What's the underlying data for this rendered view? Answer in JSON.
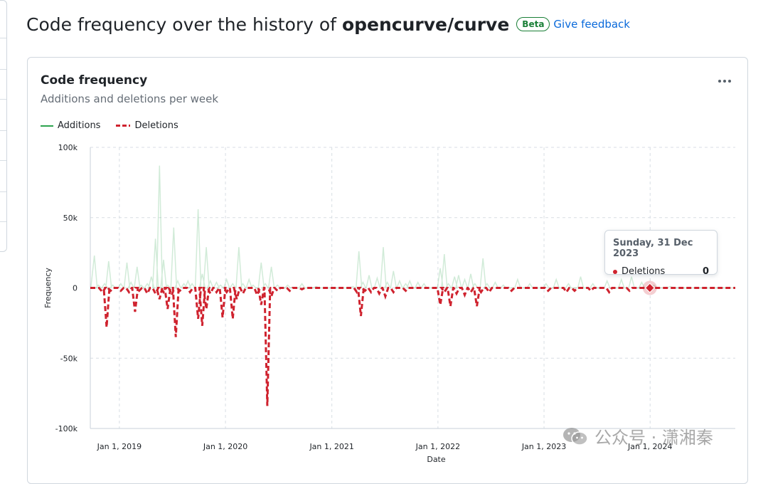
{
  "header": {
    "title_prefix": "Code frequency over the history of ",
    "repo": "opencurve/curve",
    "badge": "Beta",
    "feedback_link": "Give feedback"
  },
  "card": {
    "title": "Code frequency",
    "subtitle": "Additions and deletions per week",
    "menu_icon": "kebab-horizontal-icon"
  },
  "tooltip": {
    "date": "Sunday, 31 Dec 2023",
    "series": "Deletions",
    "value": "0"
  },
  "watermark": {
    "icon": "wechat-icon",
    "text": "公众号 · 潇湘秦"
  },
  "colors": {
    "additions": "#2da44e",
    "deletions": "#cf222e",
    "link": "#0969da",
    "badge": "#1a7f37"
  },
  "chart_data": {
    "type": "line",
    "title": "",
    "xlabel": "Date",
    "ylabel": "Frequency",
    "ylim": [
      -100000,
      100000
    ],
    "xlim": [
      "2018-09-23",
      "2024-10-20"
    ],
    "y_ticks": [
      {
        "value": 100000,
        "label": "100k"
      },
      {
        "value": 50000,
        "label": "50k"
      },
      {
        "value": 0,
        "label": "0"
      },
      {
        "value": -50000,
        "label": "-50k"
      },
      {
        "value": -100000,
        "label": "-100k"
      }
    ],
    "x_ticks": [
      {
        "value": "2019-01-01",
        "label": "Jan 1, 2019"
      },
      {
        "value": "2020-01-01",
        "label": "Jan 1, 2020"
      },
      {
        "value": "2021-01-01",
        "label": "Jan 1, 2021"
      },
      {
        "value": "2022-01-01",
        "label": "Jan 1, 2022"
      },
      {
        "value": "2023-01-01",
        "label": "Jan 1, 2023"
      },
      {
        "value": "2024-01-01",
        "label": "Jan 1, 2024"
      }
    ],
    "grid": true,
    "legend": "top-left",
    "highlight": {
      "x": "2023-12-31",
      "series": "Deletions",
      "y": 0
    },
    "series": [
      {
        "name": "Additions",
        "color": "#2da44e",
        "style": "solid",
        "points": [
          [
            "2018-10-07",
            23000
          ],
          [
            "2018-10-21",
            2000
          ],
          [
            "2018-11-11",
            3000
          ],
          [
            "2018-11-25",
            19000
          ],
          [
            "2018-12-09",
            2000
          ],
          [
            "2019-01-06",
            3000
          ],
          [
            "2019-01-27",
            18000
          ],
          [
            "2019-02-10",
            4000
          ],
          [
            "2019-03-03",
            15000
          ],
          [
            "2019-03-17",
            2000
          ],
          [
            "2019-04-07",
            3000
          ],
          [
            "2019-04-21",
            8000
          ],
          [
            "2019-05-05",
            35000
          ],
          [
            "2019-05-19",
            87000
          ],
          [
            "2019-06-02",
            20000
          ],
          [
            "2019-06-16",
            2000
          ],
          [
            "2019-07-07",
            43000
          ],
          [
            "2019-07-21",
            5000
          ],
          [
            "2019-08-11",
            3000
          ],
          [
            "2019-08-25",
            5000
          ],
          [
            "2019-09-08",
            3000
          ],
          [
            "2019-09-29",
            56000
          ],
          [
            "2019-10-13",
            10000
          ],
          [
            "2019-10-27",
            29000
          ],
          [
            "2019-11-10",
            5000
          ],
          [
            "2019-12-01",
            4000
          ],
          [
            "2019-12-15",
            2000
          ],
          [
            "2020-01-05",
            6000
          ],
          [
            "2020-01-26",
            3000
          ],
          [
            "2020-02-16",
            29000
          ],
          [
            "2020-03-01",
            3000
          ],
          [
            "2020-03-22",
            6000
          ],
          [
            "2020-04-05",
            2000
          ],
          [
            "2020-05-03",
            18000
          ],
          [
            "2020-05-17",
            3000
          ],
          [
            "2020-06-07",
            15000
          ],
          [
            "2020-06-28",
            2000
          ],
          [
            "2020-08-02",
            2000
          ],
          [
            "2020-09-20",
            3000
          ],
          [
            "2020-11-08",
            1000
          ],
          [
            "2021-03-14",
            1000
          ],
          [
            "2021-04-04",
            26000
          ],
          [
            "2021-04-18",
            4000
          ],
          [
            "2021-05-09",
            9000
          ],
          [
            "2021-06-06",
            7000
          ],
          [
            "2021-06-27",
            29000
          ],
          [
            "2021-07-11",
            4000
          ],
          [
            "2021-08-01",
            12000
          ],
          [
            "2021-08-22",
            5000
          ],
          [
            "2021-09-12",
            3000
          ],
          [
            "2021-09-26",
            5000
          ],
          [
            "2021-10-24",
            4000
          ],
          [
            "2021-11-14",
            3000
          ],
          [
            "2022-01-09",
            14000
          ],
          [
            "2022-01-23",
            24000
          ],
          [
            "2022-02-06",
            3000
          ],
          [
            "2022-02-27",
            8000
          ],
          [
            "2022-03-13",
            9000
          ],
          [
            "2022-04-03",
            6000
          ],
          [
            "2022-04-24",
            10000
          ],
          [
            "2022-05-08",
            3000
          ],
          [
            "2022-06-05",
            21000
          ],
          [
            "2022-06-19",
            3000
          ],
          [
            "2022-07-17",
            4000
          ],
          [
            "2022-08-14",
            2000
          ],
          [
            "2022-10-02",
            6000
          ],
          [
            "2022-11-13",
            3000
          ],
          [
            "2023-01-08",
            3000
          ],
          [
            "2023-02-12",
            6000
          ],
          [
            "2023-03-26",
            3000
          ],
          [
            "2023-05-07",
            8000
          ],
          [
            "2023-06-18",
            3000
          ],
          [
            "2023-08-06",
            5000
          ],
          [
            "2023-09-24",
            6000
          ],
          [
            "2023-10-29",
            8000
          ],
          [
            "2023-12-03",
            4000
          ],
          [
            "2024-01-14",
            2000
          ],
          [
            "2024-03-10",
            1000
          ]
        ]
      },
      {
        "name": "Deletions",
        "color": "#cf222e",
        "style": "dashed",
        "points": [
          [
            "2018-11-04",
            -3000
          ],
          [
            "2018-11-18",
            -28000
          ],
          [
            "2018-12-02",
            -2000
          ],
          [
            "2019-01-06",
            -2000
          ],
          [
            "2019-02-03",
            -3000
          ],
          [
            "2019-02-24",
            -17000
          ],
          [
            "2019-03-10",
            -2000
          ],
          [
            "2019-04-07",
            -4000
          ],
          [
            "2019-05-05",
            -4000
          ],
          [
            "2019-05-19",
            -8000
          ],
          [
            "2019-06-02",
            -3000
          ],
          [
            "2019-06-16",
            -15000
          ],
          [
            "2019-06-30",
            -5000
          ],
          [
            "2019-07-14",
            -35000
          ],
          [
            "2019-07-28",
            -2000
          ],
          [
            "2019-09-01",
            -3000
          ],
          [
            "2019-09-29",
            -22000
          ],
          [
            "2019-10-13",
            -27000
          ],
          [
            "2019-10-27",
            -15000
          ],
          [
            "2019-11-10",
            -4000
          ],
          [
            "2019-12-01",
            -3000
          ],
          [
            "2019-12-22",
            -21000
          ],
          [
            "2020-01-05",
            -3000
          ],
          [
            "2020-01-26",
            -22000
          ],
          [
            "2020-02-09",
            -8000
          ],
          [
            "2020-03-01",
            -4000
          ],
          [
            "2020-04-19",
            -5000
          ],
          [
            "2020-05-03",
            -12000
          ],
          [
            "2020-05-24",
            -84000
          ],
          [
            "2020-06-07",
            -6000
          ],
          [
            "2020-06-28",
            -2000
          ],
          [
            "2020-08-09",
            -2000
          ],
          [
            "2020-09-20",
            -1000
          ],
          [
            "2021-03-28",
            -3000
          ],
          [
            "2021-04-11",
            -20000
          ],
          [
            "2021-04-25",
            -2000
          ],
          [
            "2021-05-16",
            -3000
          ],
          [
            "2021-06-13",
            -4000
          ],
          [
            "2021-07-04",
            -6000
          ],
          [
            "2021-08-01",
            -3000
          ],
          [
            "2021-09-12",
            -2000
          ],
          [
            "2022-01-09",
            -12000
          ],
          [
            "2022-01-23",
            -3000
          ],
          [
            "2022-02-13",
            -13000
          ],
          [
            "2022-03-06",
            -4000
          ],
          [
            "2022-04-03",
            -5000
          ],
          [
            "2022-04-24",
            -3000
          ],
          [
            "2022-05-15",
            -13000
          ],
          [
            "2022-05-29",
            -3000
          ],
          [
            "2022-06-26",
            -3000
          ],
          [
            "2022-09-11",
            -2000
          ],
          [
            "2023-01-15",
            -2000
          ],
          [
            "2023-03-19",
            -3000
          ],
          [
            "2023-04-16",
            -2000
          ],
          [
            "2023-06-11",
            -2000
          ],
          [
            "2023-08-13",
            -3000
          ],
          [
            "2023-10-22",
            -2000
          ],
          [
            "2023-12-31",
            0
          ]
        ]
      }
    ]
  }
}
